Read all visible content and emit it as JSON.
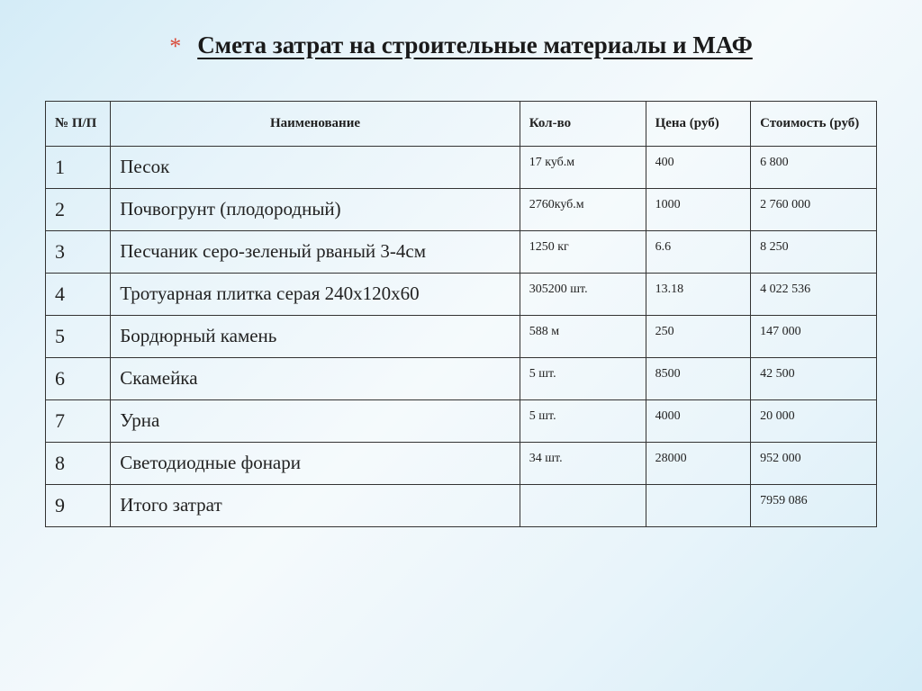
{
  "title": {
    "asterisk": "*",
    "text": "Смета затрат на строительные материалы и МАФ"
  },
  "table": {
    "headers": {
      "num": "№ П/П",
      "name": "Наименование",
      "qty": "Кол-во",
      "price": "Цена (руб)",
      "cost": "Стоимость (руб)"
    },
    "rows": [
      {
        "num": "1",
        "name": "Песок",
        "qty": "17 куб.м",
        "price": "400",
        "cost": "6 800"
      },
      {
        "num": "2",
        "name": "Почвогрунт (плодородный)",
        "qty": "2760куб.м",
        "price": "1000",
        "cost": "2 760 000"
      },
      {
        "num": "3",
        "name": "Песчаник серо-зеленый рваный    3-4см",
        "qty": "1250 кг",
        "price": "6.6",
        "cost": "8 250"
      },
      {
        "num": "4",
        "name": "Тротуарная плитка серая 240х120х60",
        "qty": "305200 шт.",
        "price": "13.18",
        "cost": "4 022 536"
      },
      {
        "num": "5",
        "name": "Бордюрный камень",
        "qty": "588 м",
        "price": "250",
        "cost": "147 000"
      },
      {
        "num": "6",
        "name": "Скамейка",
        "qty": "5 шт.",
        "price": "8500",
        "cost": "42  500"
      },
      {
        "num": "7",
        "name": "Урна",
        "qty": "5 шт.",
        "price": "4000",
        "cost": "20 000"
      },
      {
        "num": "8",
        "name": "Светодиодные фонари",
        "qty": "34 шт.",
        "price": "28000",
        "cost": "952 000"
      },
      {
        "num": "9",
        "name": "Итого затрат",
        "qty": "",
        "price": "",
        "cost": "7959 086"
      }
    ]
  },
  "styles": {
    "background_gradient_start": "#d4ecf7",
    "background_gradient_mid": "#f5fafc",
    "asterisk_color": "#d94b3a",
    "title_fontsize": 27,
    "border_color": "#333",
    "header_fontsize": 15,
    "num_fontsize": 22,
    "name_fontsize": 21,
    "small_fontsize": 14
  }
}
